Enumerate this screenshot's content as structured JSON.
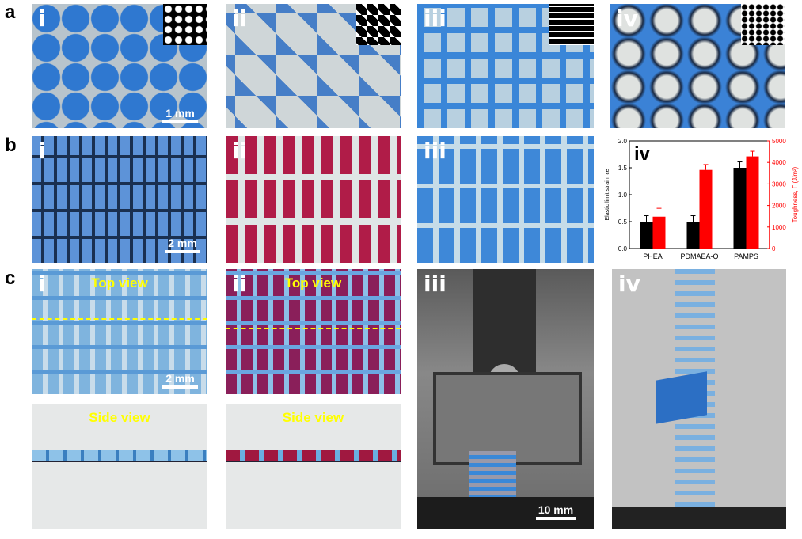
{
  "panel_labels": {
    "a": "a",
    "b": "b",
    "c": "c"
  },
  "roman": [
    "i",
    "ii",
    "iii",
    "iv"
  ],
  "scale_bars": {
    "a_i": "1 mm",
    "b_i": "2 mm",
    "c_i": "2 mm",
    "c_iii": "10 mm"
  },
  "view_labels": {
    "top": "Top view",
    "side": "Side view"
  },
  "colors": {
    "blue": "#3a7fd0",
    "magenta": "#b0204a",
    "red": "#ff0000",
    "black": "#000000"
  },
  "chart_data": {
    "type": "bar",
    "panel_label": "iv",
    "categories": [
      "PHEA",
      "PDMAEA-Q",
      "PAMPS"
    ],
    "series": [
      {
        "axis": "left",
        "color": "#000000",
        "values": [
          0.5,
          0.5,
          1.5
        ],
        "errors": [
          0.11,
          0.11,
          0.11
        ]
      },
      {
        "axis": "right",
        "color": "#ff0000",
        "values": [
          1480,
          3650,
          4280
        ],
        "errors": [
          390,
          250,
          240
        ]
      }
    ],
    "ylabel": "Elastic limit strain, εe",
    "ylabel_right": "Toughness, Γ (J/m²)",
    "ylim": [
      0,
      2.0
    ],
    "ylim_right": [
      0,
      5000
    ],
    "yticks": [
      "0.0",
      "0.5",
      "1.0",
      "1.5",
      "2.0"
    ],
    "yticks_right": [
      "0",
      "1000",
      "2000",
      "3000",
      "4000",
      "5000"
    ],
    "grid": false
  }
}
